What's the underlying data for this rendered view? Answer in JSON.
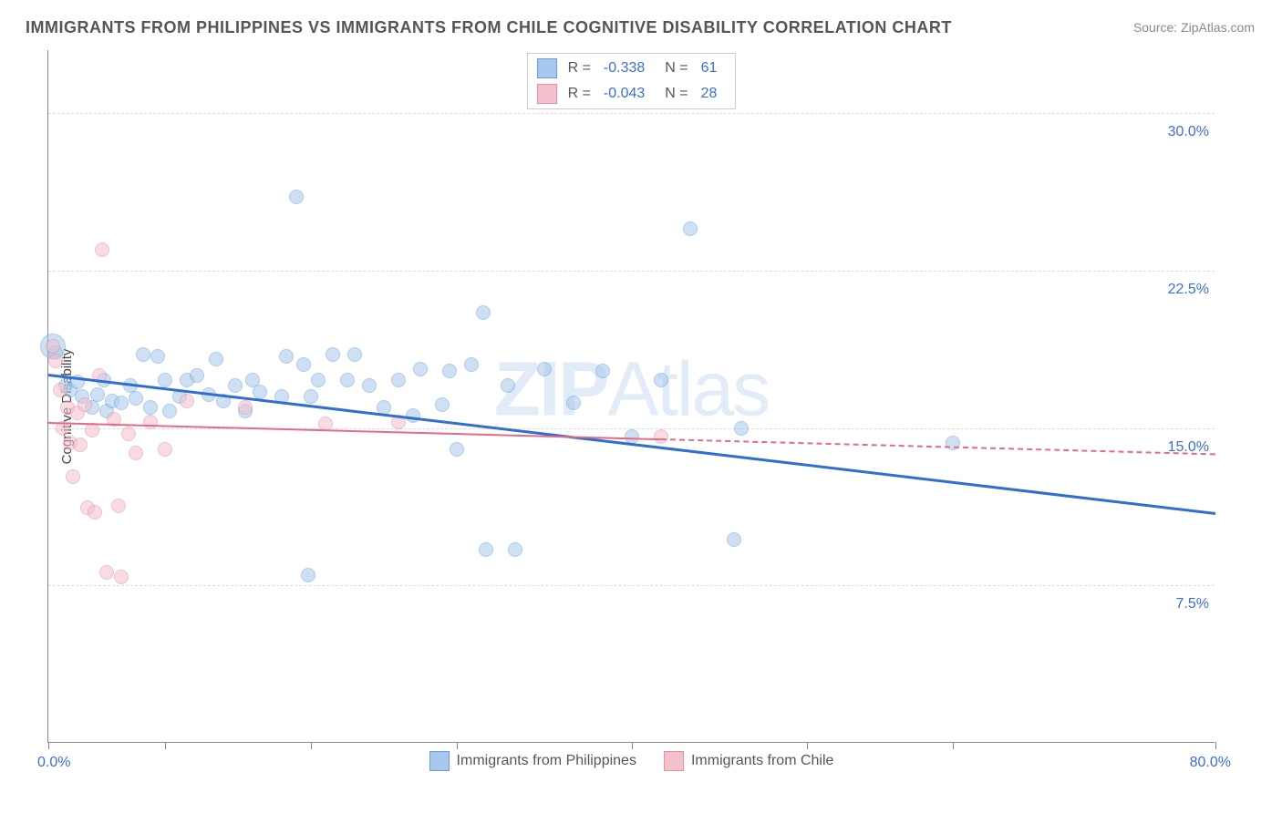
{
  "title": "IMMIGRANTS FROM PHILIPPINES VS IMMIGRANTS FROM CHILE COGNITIVE DISABILITY CORRELATION CHART",
  "source": "Source: ZipAtlas.com",
  "watermark_bold": "ZIP",
  "watermark_light": "Atlas",
  "chart": {
    "type": "scatter",
    "yaxis_title": "Cognitive Disability",
    "xlim": [
      0,
      80
    ],
    "ylim": [
      0,
      33
    ],
    "xtick_positions": [
      0,
      8,
      18,
      28,
      40,
      52,
      62,
      80
    ],
    "xlabel_min": "0.0%",
    "xlabel_max": "80.0%",
    "ytick_labels": [
      "7.5%",
      "15.0%",
      "22.5%",
      "30.0%"
    ],
    "ytick_values": [
      7.5,
      15.0,
      22.5,
      30.0
    ],
    "grid_color": "#dddddd",
    "background_color": "#ffffff",
    "series": [
      {
        "name": "Immigrants from Philippines",
        "fill_color": "#a7c7ec",
        "stroke_color": "#6f9fd8",
        "fill_opacity": 0.55,
        "marker_radius": 8,
        "trend": {
          "x0": 0,
          "y0": 17.6,
          "x1": 80,
          "y1": 11.0,
          "color": "#2f6fd0",
          "width": 3,
          "dash": false,
          "dash_after_x": null
        },
        "R": "-0.338",
        "N": "61",
        "points": [
          [
            0.3,
            18.9,
            14
          ],
          [
            0.5,
            18.6,
            8
          ],
          [
            1.2,
            17.0,
            8
          ],
          [
            1.5,
            16.8,
            8
          ],
          [
            2.0,
            17.2,
            8
          ],
          [
            2.3,
            16.5,
            8
          ],
          [
            3.0,
            16.0,
            8
          ],
          [
            3.4,
            16.6,
            8
          ],
          [
            3.8,
            17.3,
            8
          ],
          [
            4.0,
            15.8,
            8
          ],
          [
            4.4,
            16.3,
            8
          ],
          [
            5.0,
            16.2,
            8
          ],
          [
            5.6,
            17.0,
            8
          ],
          [
            6.0,
            16.4,
            8
          ],
          [
            6.5,
            18.5,
            8
          ],
          [
            7.0,
            16.0,
            8
          ],
          [
            7.5,
            18.4,
            8
          ],
          [
            8.0,
            17.3,
            8
          ],
          [
            8.3,
            15.8,
            8
          ],
          [
            9.0,
            16.5,
            8
          ],
          [
            9.5,
            17.3,
            8
          ],
          [
            10.2,
            17.5,
            8
          ],
          [
            11.0,
            16.6,
            8
          ],
          [
            11.5,
            18.3,
            8
          ],
          [
            12.0,
            16.3,
            8
          ],
          [
            12.8,
            17.0,
            8
          ],
          [
            13.5,
            15.8,
            8
          ],
          [
            14.0,
            17.3,
            8
          ],
          [
            14.5,
            16.7,
            8
          ],
          [
            16.0,
            16.5,
            8
          ],
          [
            16.3,
            18.4,
            8
          ],
          [
            17.0,
            26.0,
            8
          ],
          [
            17.5,
            18.0,
            8
          ],
          [
            18.0,
            16.5,
            8
          ],
          [
            18.5,
            17.3,
            8
          ],
          [
            17.8,
            8.0,
            8
          ],
          [
            19.5,
            18.5,
            8
          ],
          [
            20.5,
            17.3,
            8
          ],
          [
            21.0,
            18.5,
            8
          ],
          [
            22.0,
            17.0,
            8
          ],
          [
            23.0,
            16.0,
            8
          ],
          [
            24.0,
            17.3,
            8
          ],
          [
            25.0,
            15.6,
            8
          ],
          [
            25.5,
            17.8,
            8
          ],
          [
            27.0,
            16.1,
            8
          ],
          [
            27.5,
            17.7,
            8
          ],
          [
            28.0,
            14.0,
            8
          ],
          [
            29.0,
            18.0,
            8
          ],
          [
            29.8,
            20.5,
            8
          ],
          [
            30.0,
            9.2,
            8
          ],
          [
            31.5,
            17.0,
            8
          ],
          [
            32.0,
            9.2,
            8
          ],
          [
            34.0,
            17.8,
            8
          ],
          [
            36.0,
            16.2,
            8
          ],
          [
            38.0,
            17.7,
            8
          ],
          [
            40.0,
            14.6,
            8
          ],
          [
            42.0,
            17.3,
            8
          ],
          [
            44.0,
            24.5,
            8
          ],
          [
            47.0,
            9.7,
            8
          ],
          [
            47.5,
            15.0,
            8
          ],
          [
            62.0,
            14.3,
            8
          ]
        ]
      },
      {
        "name": "Immigrants from Chile",
        "fill_color": "#f3c0cb",
        "stroke_color": "#e58fa3",
        "fill_opacity": 0.55,
        "marker_radius": 8,
        "trend": {
          "x0": 0,
          "y0": 15.3,
          "x1": 80,
          "y1": 13.8,
          "color": "#e56a87",
          "width": 2,
          "dash": true,
          "dash_after_x": 42
        },
        "R": "-0.043",
        "N": "28",
        "points": [
          [
            0.3,
            18.9,
            8
          ],
          [
            0.5,
            18.2,
            8
          ],
          [
            0.8,
            16.8,
            8
          ],
          [
            1.0,
            15.0,
            8
          ],
          [
            1.3,
            16.0,
            8
          ],
          [
            1.5,
            14.3,
            8
          ],
          [
            1.7,
            12.7,
            8
          ],
          [
            2.0,
            15.7,
            8
          ],
          [
            2.2,
            14.2,
            8
          ],
          [
            2.5,
            16.1,
            8
          ],
          [
            2.7,
            11.2,
            8
          ],
          [
            3.0,
            14.9,
            8
          ],
          [
            3.2,
            11.0,
            8
          ],
          [
            3.5,
            17.5,
            8
          ],
          [
            3.7,
            23.5,
            8
          ],
          [
            4.0,
            8.1,
            8
          ],
          [
            4.5,
            15.4,
            8
          ],
          [
            4.8,
            11.3,
            8
          ],
          [
            5.0,
            7.9,
            8
          ],
          [
            5.5,
            14.7,
            8
          ],
          [
            6.0,
            13.8,
            8
          ],
          [
            7.0,
            15.3,
            8
          ],
          [
            8.0,
            14.0,
            8
          ],
          [
            9.5,
            16.3,
            8
          ],
          [
            13.5,
            16.0,
            8
          ],
          [
            19.0,
            15.2,
            8
          ],
          [
            24.0,
            15.3,
            8
          ],
          [
            42.0,
            14.6,
            8
          ]
        ]
      }
    ]
  },
  "legend_top_rows": [
    {
      "swatch_fill": "#a7c7ec",
      "swatch_stroke": "#6f9fd8",
      "R_label": "R =",
      "R_val": "-0.338",
      "N_label": "N =",
      "N_val": "61"
    },
    {
      "swatch_fill": "#f3c0cb",
      "swatch_stroke": "#e58fa3",
      "R_label": "R =",
      "R_val": "-0.043",
      "N_label": "N =",
      "N_val": "28"
    }
  ],
  "legend_bottom": [
    {
      "swatch_fill": "#a7c7ec",
      "swatch_stroke": "#6f9fd8",
      "label": "Immigrants from Philippines"
    },
    {
      "swatch_fill": "#f3c0cb",
      "swatch_stroke": "#e58fa3",
      "label": "Immigrants from Chile"
    }
  ]
}
